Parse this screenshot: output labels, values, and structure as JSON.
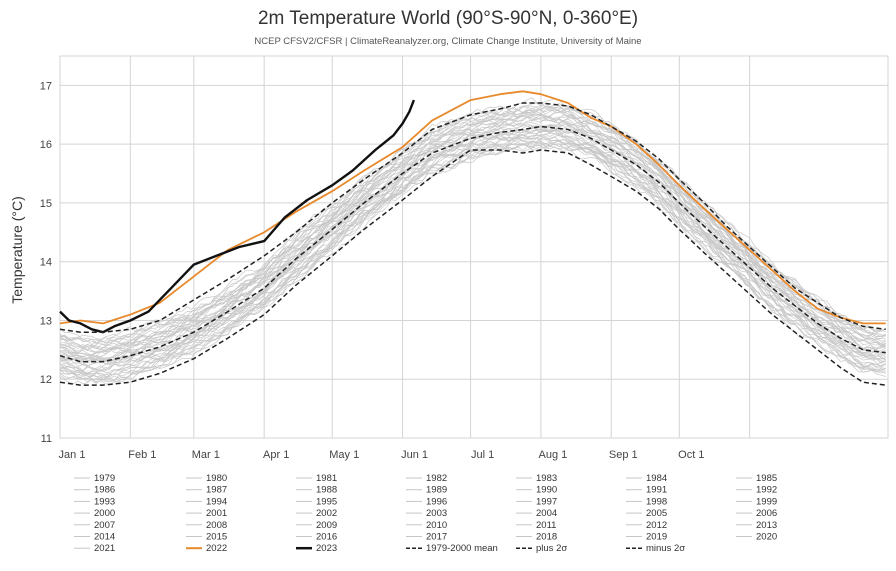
{
  "chart_data": {
    "type": "line",
    "title": "2m Temperature World (90°S-90°N, 0-360°E)",
    "subtitle": "NCEP CFSV2/CFSR | ClimateReanalyzer.org, Climate Change Institute, University of Maine",
    "ylabel": "Temperature (°C)",
    "xlabel": "",
    "ylim": [
      11,
      17.5
    ],
    "yticks": [
      11,
      12,
      13,
      14,
      15,
      16,
      17
    ],
    "xlim": [
      1,
      366
    ],
    "x_unit": "day of year",
    "month_ticks": [
      {
        "label": "Jan 1",
        "day": 1
      },
      {
        "label": "Feb 1",
        "day": 32
      },
      {
        "label": "Mar 1",
        "day": 60
      },
      {
        "label": "Apr 1",
        "day": 91
      },
      {
        "label": "May 1",
        "day": 121
      },
      {
        "label": "Jun 1",
        "day": 152
      },
      {
        "label": "Jul 1",
        "day": 182
      },
      {
        "label": "Aug 1",
        "day": 213
      },
      {
        "label": "Sep 1",
        "day": 244
      },
      {
        "label": "Oct 1",
        "day": 274
      }
    ],
    "grid": true,
    "legend_position": "bottom",
    "colors": {
      "historical": "#c6c6c6",
      "y2022": "#e8892b",
      "y2023": "#111111",
      "mean": "#222222",
      "sigma": "#222222",
      "grid": "#d4d4d4"
    },
    "historical_years": [
      "1979",
      "1980",
      "1981",
      "1982",
      "1983",
      "1984",
      "1985",
      "1986",
      "1987",
      "1988",
      "1989",
      "1990",
      "1991",
      "1992",
      "1993",
      "1994",
      "1995",
      "1996",
      "1997",
      "1998",
      "1999",
      "2000",
      "2001",
      "2002",
      "2003",
      "2004",
      "2005",
      "2006",
      "2007",
      "2008",
      "2009",
      "2010",
      "2011",
      "2012",
      "2013",
      "2014",
      "2015",
      "2016",
      "2017",
      "2018",
      "2019",
      "2020",
      "2021"
    ],
    "series": [
      {
        "name": "2022",
        "x": [
          1,
          10,
          20,
          32,
          45,
          60,
          75,
          91,
          105,
          121,
          135,
          152,
          165,
          182,
          195,
          205,
          213,
          225,
          235,
          244,
          255,
          265,
          274,
          285,
          295,
          305,
          315,
          325,
          335,
          345,
          355,
          365
        ],
        "y": [
          12.95,
          13.0,
          12.95,
          13.1,
          13.3,
          13.75,
          14.2,
          14.5,
          14.85,
          15.2,
          15.55,
          15.95,
          16.4,
          16.75,
          16.85,
          16.9,
          16.85,
          16.7,
          16.45,
          16.3,
          16.0,
          15.65,
          15.3,
          14.9,
          14.55,
          14.2,
          13.85,
          13.5,
          13.2,
          13.05,
          12.95,
          12.95
        ],
        "style": "solid"
      },
      {
        "name": "2023",
        "x": [
          1,
          5,
          10,
          15,
          20,
          25,
          32,
          40,
          50,
          60,
          70,
          80,
          91,
          100,
          110,
          121,
          130,
          140,
          148,
          152,
          155,
          157
        ],
        "y": [
          13.15,
          13.0,
          12.95,
          12.85,
          12.8,
          12.9,
          13.0,
          13.15,
          13.55,
          13.95,
          14.1,
          14.25,
          14.35,
          14.75,
          15.05,
          15.3,
          15.55,
          15.9,
          16.15,
          16.35,
          16.55,
          16.75
        ],
        "style": "solid"
      },
      {
        "name": "1979-2000 mean",
        "x": [
          1,
          10,
          20,
          32,
          45,
          60,
          75,
          91,
          105,
          121,
          135,
          152,
          165,
          182,
          195,
          205,
          213,
          225,
          235,
          244,
          255,
          265,
          274,
          285,
          295,
          305,
          315,
          325,
          335,
          345,
          355,
          365
        ],
        "y": [
          12.4,
          12.3,
          12.3,
          12.4,
          12.55,
          12.8,
          13.15,
          13.55,
          14.05,
          14.55,
          15.0,
          15.5,
          15.85,
          16.1,
          16.2,
          16.25,
          16.3,
          16.25,
          16.1,
          15.9,
          15.65,
          15.35,
          15.0,
          14.6,
          14.25,
          13.9,
          13.55,
          13.25,
          12.95,
          12.7,
          12.5,
          12.45
        ],
        "style": "dashed"
      },
      {
        "name": "plus 2σ",
        "x": [
          1,
          10,
          20,
          32,
          45,
          60,
          75,
          91,
          105,
          121,
          135,
          152,
          165,
          182,
          195,
          205,
          213,
          225,
          235,
          244,
          255,
          265,
          274,
          285,
          295,
          305,
          315,
          325,
          335,
          345,
          355,
          365
        ],
        "y": [
          12.85,
          12.8,
          12.8,
          12.85,
          13.0,
          13.35,
          13.7,
          14.1,
          14.5,
          15.0,
          15.4,
          15.85,
          16.25,
          16.5,
          16.6,
          16.7,
          16.7,
          16.65,
          16.5,
          16.3,
          16.05,
          15.75,
          15.4,
          15.0,
          14.6,
          14.25,
          13.9,
          13.55,
          13.3,
          13.05,
          12.9,
          12.85
        ],
        "style": "dashed"
      },
      {
        "name": "minus 2σ",
        "x": [
          1,
          10,
          20,
          32,
          45,
          60,
          75,
          91,
          105,
          121,
          135,
          152,
          165,
          182,
          195,
          205,
          213,
          225,
          235,
          244,
          255,
          265,
          274,
          285,
          295,
          305,
          315,
          325,
          335,
          345,
          355,
          365
        ],
        "y": [
          11.95,
          11.9,
          11.9,
          11.95,
          12.1,
          12.35,
          12.7,
          13.1,
          13.6,
          14.1,
          14.55,
          15.05,
          15.45,
          15.9,
          15.9,
          15.85,
          15.9,
          15.85,
          15.65,
          15.45,
          15.2,
          14.9,
          14.55,
          14.15,
          13.8,
          13.45,
          13.1,
          12.8,
          12.5,
          12.2,
          11.95,
          11.9
        ],
        "style": "dashed"
      }
    ],
    "legend": {
      "columns": 7,
      "entries": [
        {
          "label": "1979",
          "kind": "historical"
        },
        {
          "label": "1980",
          "kind": "historical"
        },
        {
          "label": "1981",
          "kind": "historical"
        },
        {
          "label": "1982",
          "kind": "historical"
        },
        {
          "label": "1983",
          "kind": "historical"
        },
        {
          "label": "1984",
          "kind": "historical"
        },
        {
          "label": "1985",
          "kind": "historical"
        },
        {
          "label": "1986",
          "kind": "historical"
        },
        {
          "label": "1987",
          "kind": "historical"
        },
        {
          "label": "1988",
          "kind": "historical"
        },
        {
          "label": "1989",
          "kind": "historical"
        },
        {
          "label": "1990",
          "kind": "historical"
        },
        {
          "label": "1991",
          "kind": "historical"
        },
        {
          "label": "1992",
          "kind": "historical"
        },
        {
          "label": "1993",
          "kind": "historical"
        },
        {
          "label": "1994",
          "kind": "historical"
        },
        {
          "label": "1995",
          "kind": "historical"
        },
        {
          "label": "1996",
          "kind": "historical"
        },
        {
          "label": "1997",
          "kind": "historical"
        },
        {
          "label": "1998",
          "kind": "historical"
        },
        {
          "label": "1999",
          "kind": "historical"
        },
        {
          "label": "2000",
          "kind": "historical"
        },
        {
          "label": "2001",
          "kind": "historical"
        },
        {
          "label": "2002",
          "kind": "historical"
        },
        {
          "label": "2003",
          "kind": "historical"
        },
        {
          "label": "2004",
          "kind": "historical"
        },
        {
          "label": "2005",
          "kind": "historical"
        },
        {
          "label": "2006",
          "kind": "historical"
        },
        {
          "label": "2007",
          "kind": "historical"
        },
        {
          "label": "2008",
          "kind": "historical"
        },
        {
          "label": "2009",
          "kind": "historical"
        },
        {
          "label": "2010",
          "kind": "historical"
        },
        {
          "label": "2011",
          "kind": "historical"
        },
        {
          "label": "2012",
          "kind": "historical"
        },
        {
          "label": "2013",
          "kind": "historical"
        },
        {
          "label": "2014",
          "kind": "historical"
        },
        {
          "label": "2015",
          "kind": "historical"
        },
        {
          "label": "2016",
          "kind": "historical"
        },
        {
          "label": "2017",
          "kind": "historical"
        },
        {
          "label": "2018",
          "kind": "historical"
        },
        {
          "label": "2019",
          "kind": "historical"
        },
        {
          "label": "2020",
          "kind": "historical"
        },
        {
          "label": "2021",
          "kind": "historical"
        },
        {
          "label": "2022",
          "kind": "y2022"
        },
        {
          "label": "2023",
          "kind": "y2023"
        },
        {
          "label": "1979-2000 mean",
          "kind": "mean"
        },
        {
          "label": "plus 2σ",
          "kind": "sigma"
        },
        {
          "label": "minus 2σ",
          "kind": "sigma"
        }
      ]
    }
  }
}
